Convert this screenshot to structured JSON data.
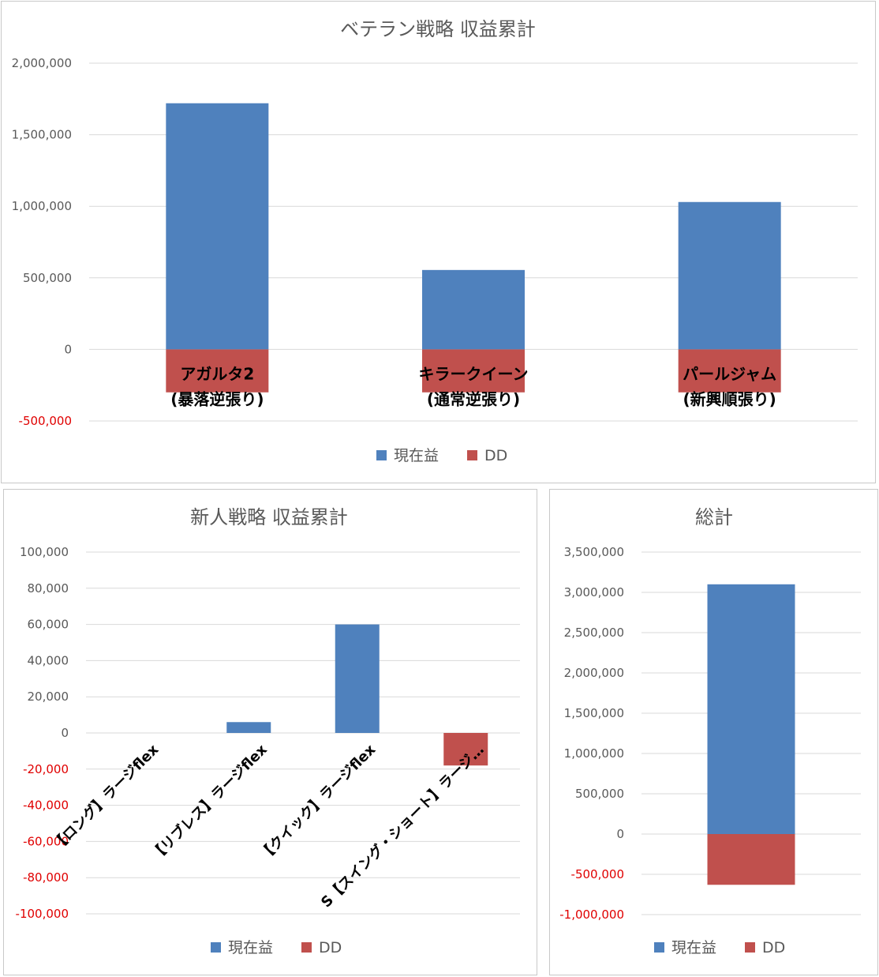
{
  "colors": {
    "profit": "#4f81bd",
    "dd": "#c0504d",
    "negative_tick": "#e00000"
  },
  "charts": [
    {
      "id": "veteran",
      "title": "ベテラン戦略 収益累計",
      "type": "bar",
      "categories": [
        [
          "アガルタ2",
          "(暴落逆張り)"
        ],
        [
          "キラークイーン",
          "(通常逆張り)"
        ],
        [
          "パールジャム",
          "(新興順張り)"
        ]
      ],
      "series": [
        {
          "name": "現在益",
          "values": [
            1720000,
            555000,
            1030000
          ]
        },
        {
          "name": "DD",
          "values": [
            -300000,
            -300000,
            -300000
          ]
        }
      ],
      "yticks": [
        "2,000,000",
        "1,500,000",
        "1,000,000",
        "500,000",
        "0",
        "-500,000"
      ],
      "ylim": [
        -500000,
        2000000
      ],
      "grid": true,
      "legend": "bottom"
    },
    {
      "id": "newcomer",
      "title": "新人戦略 収益累計",
      "type": "bar",
      "categories": [
        "【ロング】ラージflex",
        "【リブレス】ラージflex",
        "【クイック】ラージflex",
        "S【スイング・ショート】ラージ…"
      ],
      "series": [
        {
          "name": "現在益",
          "values": [
            0,
            6000,
            60000,
            0
          ]
        },
        {
          "name": "DD",
          "values": [
            0,
            0,
            0,
            -18000
          ]
        }
      ],
      "yticks": [
        "100,000",
        "80,000",
        "60,000",
        "40,000",
        "20,000",
        "0",
        "-20,000",
        "-40,000",
        "-60,000",
        "-80,000",
        "-100,000"
      ],
      "ylim": [
        -100000,
        100000
      ],
      "grid": true,
      "legend": "bottom"
    },
    {
      "id": "total",
      "title": "総計",
      "type": "bar",
      "categories": [
        ""
      ],
      "series": [
        {
          "name": "現在益",
          "values": [
            3100000
          ]
        },
        {
          "name": "DD",
          "values": [
            -630000
          ]
        }
      ],
      "yticks": [
        "3,500,000",
        "3,000,000",
        "2,500,000",
        "2,000,000",
        "1,500,000",
        "1,000,000",
        "500,000",
        "0",
        "-500,000",
        "-1,000,000"
      ],
      "ylim": [
        -1000000,
        3500000
      ],
      "grid": true,
      "legend": "bottom"
    }
  ]
}
